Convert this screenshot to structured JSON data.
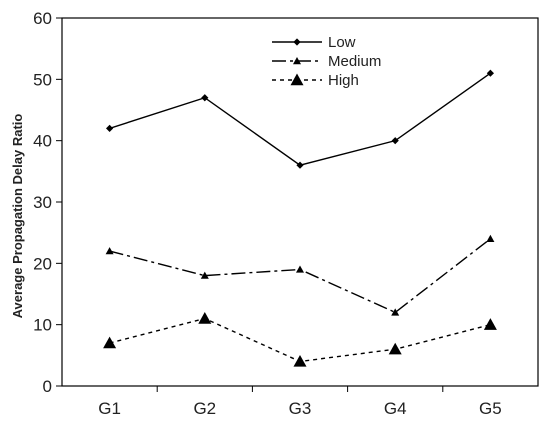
{
  "chart_data": {
    "type": "line",
    "title": "",
    "xlabel": "",
    "ylabel": "Average Propagation Delay Ratio",
    "categories": [
      "G1",
      "G2",
      "G3",
      "G4",
      "G5"
    ],
    "ylim": [
      0,
      60
    ],
    "yticks": [
      0,
      10,
      20,
      30,
      40,
      50,
      60
    ],
    "grid": false,
    "legend_position": "top-center",
    "series": [
      {
        "name": "Low",
        "values": [
          42,
          47,
          36,
          40,
          51
        ],
        "marker": "diamond",
        "line_style": "solid",
        "color": "#000000"
      },
      {
        "name": "Medium",
        "values": [
          22,
          18,
          19,
          12,
          24
        ],
        "marker": "small-triangle",
        "line_style": "dash-dot",
        "color": "#000000"
      },
      {
        "name": "High",
        "values": [
          7,
          11,
          4,
          6,
          10
        ],
        "marker": "triangle",
        "line_style": "dotted",
        "color": "#000000"
      }
    ]
  }
}
